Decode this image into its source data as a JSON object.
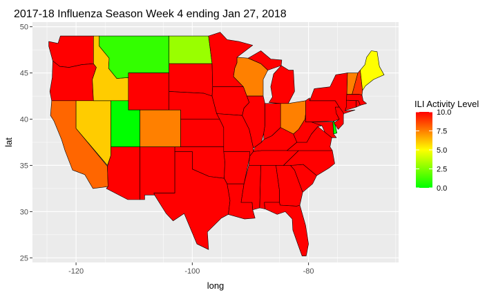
{
  "title": "2017-18 Influenza Season Week 4 ending Jan 27, 2018",
  "xlabel": "long",
  "ylabel": "lat",
  "x_ticks": [
    "-120",
    "-100",
    "-80"
  ],
  "y_ticks": [
    "25",
    "30",
    "35",
    "40",
    "45",
    "50"
  ],
  "legend": {
    "title": "ILI Activity Level",
    "ticks": [
      "0.0",
      "2.5",
      "5.0",
      "7.5",
      "10.0"
    ],
    "colors": [
      "#00ff00",
      "#ffff00",
      "#ff0000"
    ]
  },
  "colors": {
    "panel_background": "#ebebeb",
    "grid_major": "#ffffff",
    "state_border": "#000000"
  },
  "chart_data": {
    "type": "choropleth",
    "title": "2017-18 Influenza Season Week 4 ending Jan 27, 2018",
    "xlabel": "long",
    "ylabel": "lat",
    "xlim": [
      -127.5,
      -64.5
    ],
    "ylim": [
      24.5,
      50.5
    ],
    "grid": true,
    "legend_position": "right",
    "color_scale": {
      "min": 0,
      "max": 10,
      "low": "#00ff00",
      "mid": "#ffff00",
      "high": "#ff0000"
    },
    "states": [
      {
        "name": "WA",
        "level": 10
      },
      {
        "name": "OR",
        "level": 10
      },
      {
        "name": "CA",
        "level": 8
      },
      {
        "name": "NV",
        "level": 6
      },
      {
        "name": "ID",
        "level": 6
      },
      {
        "name": "MT",
        "level": 1
      },
      {
        "name": "WY",
        "level": 10
      },
      {
        "name": "UT",
        "level": 0
      },
      {
        "name": "AZ",
        "level": 10
      },
      {
        "name": "CO",
        "level": 7.5
      },
      {
        "name": "NM",
        "level": 10
      },
      {
        "name": "ND",
        "level": 3
      },
      {
        "name": "SD",
        "level": 10
      },
      {
        "name": "NE",
        "level": 10
      },
      {
        "name": "KS",
        "level": 10
      },
      {
        "name": "OK",
        "level": 10
      },
      {
        "name": "TX",
        "level": 10
      },
      {
        "name": "MN",
        "level": 10
      },
      {
        "name": "IA",
        "level": 10
      },
      {
        "name": "MO",
        "level": 10
      },
      {
        "name": "AR",
        "level": 10
      },
      {
        "name": "LA",
        "level": 10
      },
      {
        "name": "WI",
        "level": 7.5
      },
      {
        "name": "IL",
        "level": 10
      },
      {
        "name": "MI",
        "level": 10
      },
      {
        "name": "IN",
        "level": 10
      },
      {
        "name": "OH",
        "level": 7.5
      },
      {
        "name": "KY",
        "level": 10
      },
      {
        "name": "TN",
        "level": 10
      },
      {
        "name": "MS",
        "level": 10
      },
      {
        "name": "AL",
        "level": 10
      },
      {
        "name": "GA",
        "level": 10
      },
      {
        "name": "FL",
        "level": 10
      },
      {
        "name": "SC",
        "level": 10
      },
      {
        "name": "NC",
        "level": 10
      },
      {
        "name": "VA",
        "level": 10
      },
      {
        "name": "WV",
        "level": 10
      },
      {
        "name": "MD",
        "level": 10
      },
      {
        "name": "DE",
        "level": 0
      },
      {
        "name": "PA",
        "level": 10
      },
      {
        "name": "NJ",
        "level": 10
      },
      {
        "name": "NY",
        "level": 10
      },
      {
        "name": "CT",
        "level": 10
      },
      {
        "name": "RI",
        "level": 10
      },
      {
        "name": "MA",
        "level": 10
      },
      {
        "name": "VT",
        "level": 7.5
      },
      {
        "name": "NH",
        "level": 9
      },
      {
        "name": "ME",
        "level": 5
      }
    ]
  }
}
